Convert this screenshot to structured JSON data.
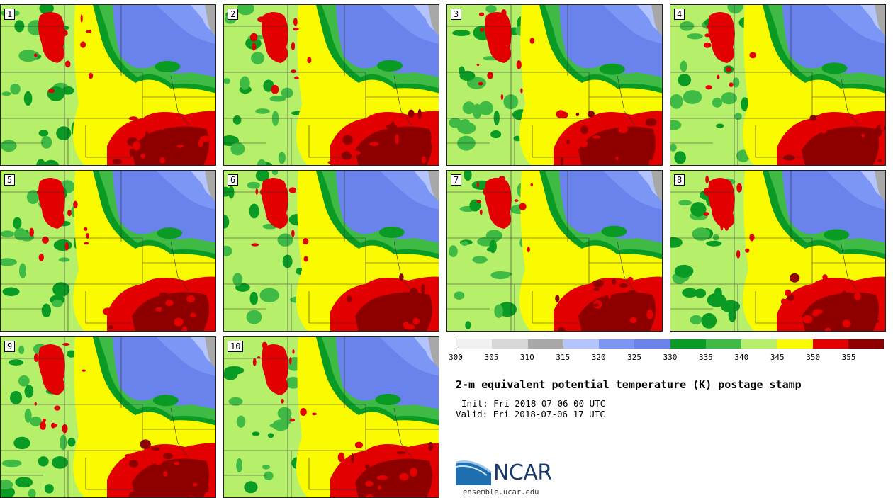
{
  "panels": [
    "1",
    "2",
    "3",
    "4",
    "5",
    "6",
    "7",
    "8",
    "9",
    "10"
  ],
  "colorbar": {
    "ticks": [
      "300",
      "305",
      "310",
      "315",
      "320",
      "325",
      "330",
      "335",
      "340",
      "345",
      "350",
      "355"
    ],
    "colors": [
      "#f0f0f0",
      "#d7d7d7",
      "#a8a8a8",
      "#b4c4ff",
      "#7b96f5",
      "#6a82ec",
      "#099b23",
      "#3fba45",
      "#b6f06a",
      "#fbfb00",
      "#e20000",
      "#8e0000"
    ]
  },
  "title": "2-m equivalent potential temperature (K) postage stamp",
  "init": "Init: Fri 2018-07-06 00 UTC",
  "valid": "Valid: Fri 2018-07-06 17 UTC",
  "logo": {
    "name": "NCAR",
    "url": "ensemble.ucar.edu"
  }
}
